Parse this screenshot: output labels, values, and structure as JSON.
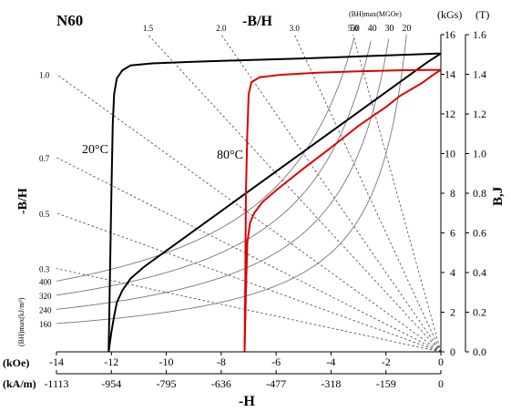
{
  "chart_data": {
    "type": "line",
    "title": "N60",
    "top_axis_title": "-B/H",
    "bottom_axis_title": "-H",
    "left_axis_title": "-B/H",
    "right_axis_title": "B,J",
    "unit_koe": "(kOe)",
    "unit_kam": "(kA/m)",
    "unit_kgs": "(kGs)",
    "unit_t": "(T)",
    "bhmax_label": "(BH)max(MGOe)",
    "bhmax_kj_label": "(BH)max(kJ/m³)",
    "grid": false,
    "x_koe": {
      "min": -14,
      "max": 0,
      "ticks": [
        -14,
        -12,
        -10,
        -8,
        -6,
        -4,
        -2,
        0
      ]
    },
    "x_kam_ticks": [
      {
        "at": -14,
        "label": "-1113"
      },
      {
        "at": -12,
        "label": "-954"
      },
      {
        "at": -10,
        "label": "-795"
      },
      {
        "at": -8,
        "label": "-636"
      },
      {
        "at": -6,
        "label": "-477"
      },
      {
        "at": -4,
        "label": "-318"
      },
      {
        "at": -2,
        "label": "-159"
      },
      {
        "at": 0,
        "label": "0"
      }
    ],
    "y_kgs": {
      "min": 0,
      "max": 16,
      "ticks": [
        0,
        2,
        4,
        6,
        8,
        10,
        12,
        14,
        16
      ]
    },
    "y_t_ticks": [
      "0.0",
      "0.2",
      "0.4",
      "0.6",
      "0.8",
      "1.0",
      "1.2",
      "1.4",
      "1.6"
    ],
    "permeance_lines": [
      {
        "slope": 1.0,
        "label": "1.0"
      },
      {
        "slope": 0.7,
        "label": "0.7"
      },
      {
        "slope": 0.5,
        "label": "0.5"
      },
      {
        "slope": 0.3,
        "label": "0.3"
      },
      {
        "slope": 1.5,
        "label": "1.5"
      },
      {
        "slope": 2.0,
        "label": "2.0"
      },
      {
        "slope": 3.0,
        "label": "3.0"
      },
      {
        "slope": 5.0,
        "label": "5.0"
      }
    ],
    "energy_curves_mgoe": [
      {
        "value": 50,
        "label": "50",
        "kj_label": "400"
      },
      {
        "value": 40,
        "label": "40",
        "kj_label": "320"
      },
      {
        "value": 30,
        "label": "30",
        "kj_label": "240"
      },
      {
        "value": 20,
        "label": "20",
        "kj_label": "160"
      }
    ],
    "series": [
      {
        "name": "20°C",
        "color": "#000000",
        "kind": "J",
        "points": [
          [
            0,
            15.05
          ],
          [
            -1,
            15.0
          ],
          [
            -3,
            14.9
          ],
          [
            -5,
            14.8
          ],
          [
            -7,
            14.72
          ],
          [
            -9,
            14.63
          ],
          [
            -10.5,
            14.55
          ],
          [
            -11.3,
            14.45
          ],
          [
            -11.6,
            14.2
          ],
          [
            -11.8,
            13.8
          ],
          [
            -11.9,
            13.0
          ],
          [
            -11.95,
            11.5
          ],
          [
            -12.0,
            8.0
          ],
          [
            -12.05,
            4.0
          ],
          [
            -12.1,
            0
          ]
        ]
      },
      {
        "name": "20°C",
        "color": "#000000",
        "kind": "B",
        "points": [
          [
            0,
            15.05
          ],
          [
            -0.5,
            14.6
          ],
          [
            -1,
            14.1
          ],
          [
            -2,
            13.1
          ],
          [
            -3,
            12.1
          ],
          [
            -4,
            11.1
          ],
          [
            -5,
            10.1
          ],
          [
            -6,
            9.1
          ],
          [
            -7,
            8.1
          ],
          [
            -8,
            7.1
          ],
          [
            -9,
            6.1
          ],
          [
            -10,
            5.1
          ],
          [
            -10.8,
            4.3
          ],
          [
            -11.3,
            3.7
          ],
          [
            -11.6,
            3.1
          ],
          [
            -11.8,
            2.5
          ],
          [
            -11.9,
            1.8
          ],
          [
            -12.0,
            1.0
          ],
          [
            -12.1,
            0
          ]
        ]
      },
      {
        "name": "80°C",
        "color": "#e00000",
        "kind": "J",
        "points": [
          [
            0,
            14.22
          ],
          [
            -0.5,
            14.22
          ],
          [
            -1.5,
            14.2
          ],
          [
            -3,
            14.15
          ],
          [
            -4.5,
            14.08
          ],
          [
            -5.8,
            13.98
          ],
          [
            -6.6,
            13.85
          ],
          [
            -6.9,
            13.6
          ],
          [
            -7.0,
            13.0
          ],
          [
            -7.05,
            11.0
          ],
          [
            -7.1,
            8.0
          ],
          [
            -7.12,
            4.0
          ],
          [
            -7.15,
            0
          ]
        ]
      },
      {
        "name": "80°C",
        "color": "#e00000",
        "kind": "B",
        "points": [
          [
            0,
            14.22
          ],
          [
            -0.3,
            13.95
          ],
          [
            -0.7,
            13.55
          ],
          [
            -1.5,
            12.9
          ],
          [
            -2,
            12.35
          ],
          [
            -3,
            11.4
          ],
          [
            -4,
            10.3
          ],
          [
            -5,
            9.25
          ],
          [
            -6,
            8.15
          ],
          [
            -6.5,
            7.55
          ],
          [
            -6.8,
            7.0
          ],
          [
            -6.95,
            6.5
          ],
          [
            -7.05,
            5.5
          ],
          [
            -7.1,
            3.0
          ],
          [
            -7.15,
            0
          ]
        ]
      }
    ]
  }
}
